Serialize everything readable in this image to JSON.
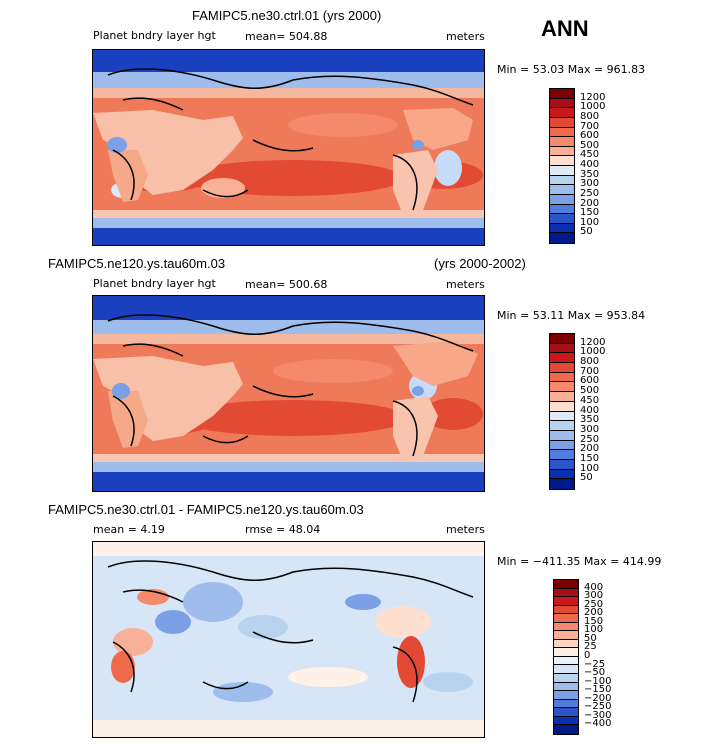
{
  "panel1": {
    "title": "FAMIPC5.ne30.ctrl.01 (yrs 2000)",
    "var": "Planet bndry layer hgt",
    "mean": "mean= 504.88",
    "units": "meters",
    "minmax": "Min =  53.03  Max = 961.83",
    "levels": [
      "1200",
      "1000",
      "800",
      "700",
      "600",
      "500",
      "450",
      "400",
      "350",
      "300",
      "250",
      "200",
      "150",
      "100",
      "50"
    ]
  },
  "season": "ANN",
  "panel2": {
    "title": "FAMIPC5.ne120.ys.tau60m.03",
    "years": "(yrs 2000-2002)",
    "var": "Planet bndry layer hgt",
    "mean": "mean= 500.68",
    "units": "meters",
    "minmax": "Min =  53.11  Max = 953.84",
    "levels": [
      "1200",
      "1000",
      "800",
      "700",
      "600",
      "500",
      "450",
      "400",
      "350",
      "300",
      "250",
      "200",
      "150",
      "100",
      "50"
    ]
  },
  "panel3": {
    "title": "FAMIPC5.ne30.ctrl.01 - FAMIPC5.ne120.ys.tau60m.03",
    "mean": "mean =    4.19",
    "rmse": "rmse =   48.04",
    "units": "meters",
    "minmax": "Min = −411.35  Max = 414.99",
    "levels": [
      "400",
      "300",
      "250",
      "200",
      "150",
      "100",
      "50",
      "25",
      "0",
      "−25",
      "−50",
      "−100",
      "−150",
      "−200",
      "−250",
      "−300",
      "−400"
    ]
  },
  "colors": {
    "abs_scale": [
      "#7a0000",
      "#a50f15",
      "#cb181d",
      "#e34a33",
      "#ef6a4a",
      "#f4896b",
      "#f8b196",
      "#fde0d0",
      "#deebf7",
      "#b7d3ee",
      "#9ebcec",
      "#7ba0e6",
      "#4f7fdd",
      "#2a55c8",
      "#0b2fb0",
      "#001a8a"
    ],
    "diff_scale": [
      "#7a0000",
      "#a50f15",
      "#cb181d",
      "#e34a33",
      "#ef6a4a",
      "#f4896b",
      "#f8b196",
      "#fcd5c2",
      "#fdf1e8",
      "#eaf3fb",
      "#d6e6f7",
      "#b7d3ee",
      "#9ebcec",
      "#7ba0e6",
      "#4f7fdd",
      "#2a55c8",
      "#0b2fb0",
      "#001a8a"
    ]
  }
}
